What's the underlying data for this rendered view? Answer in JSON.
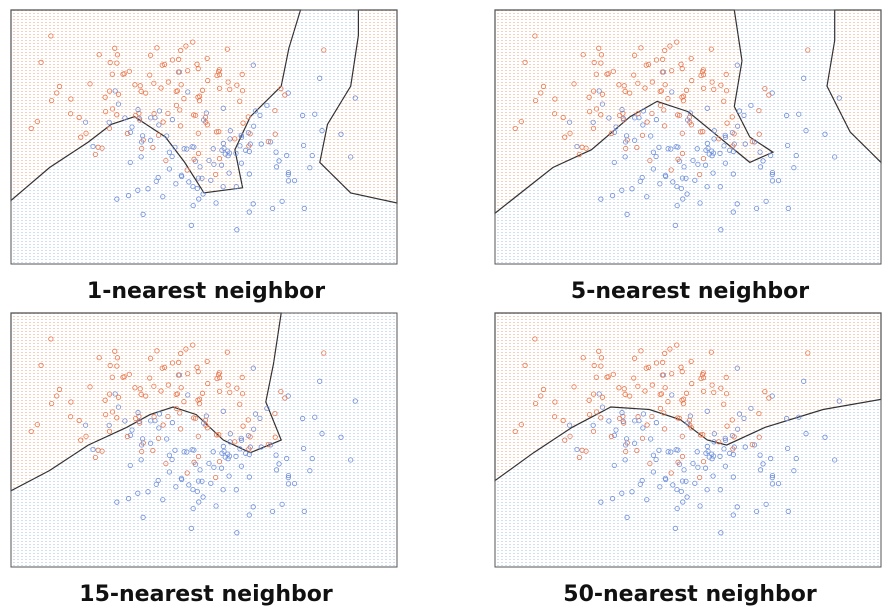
{
  "panels": [
    {
      "caption": "1-nearest neighbor"
    },
    {
      "caption": "5-nearest neighbor"
    },
    {
      "caption": "15-nearest neighbor"
    },
    {
      "caption": "50-nearest neighbor"
    }
  ]
}
